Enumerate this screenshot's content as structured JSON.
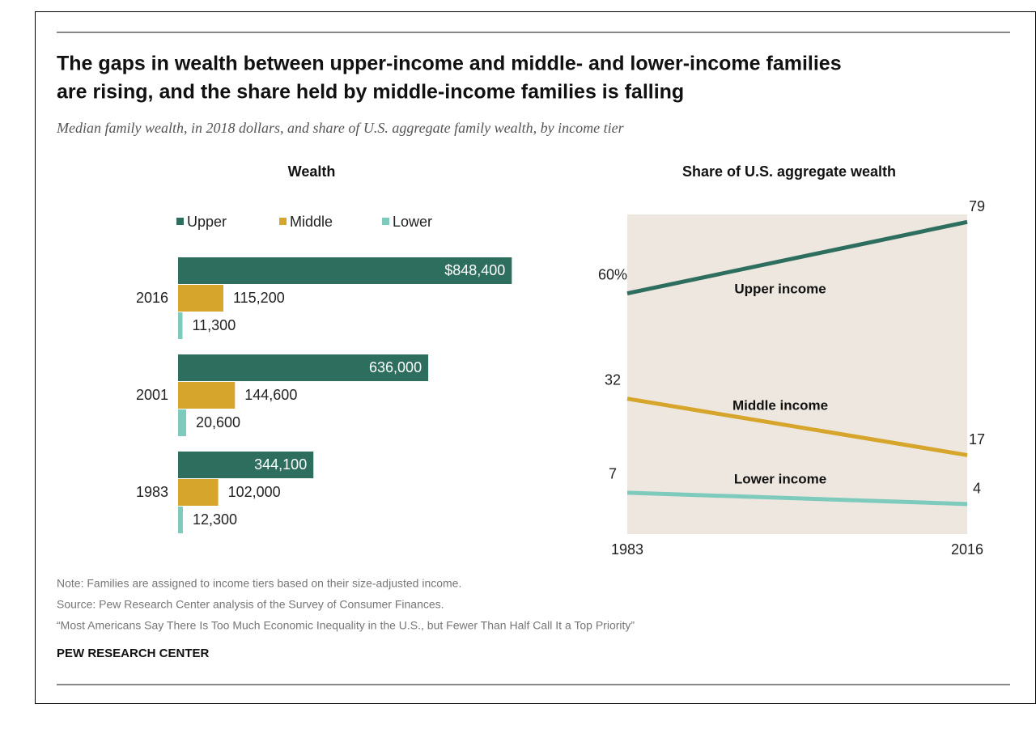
{
  "title": [
    "The gaps in wealth between upper-income and middle- and lower-income families",
    "are rising, and the share held by middle-income families is falling"
  ],
  "subtitle": "Median family wealth, in 2018 dollars, and share of U.S. aggregate family wealth, by income tier",
  "chart_data": [
    {
      "type": "bar",
      "title": "Wealth",
      "orientation": "horizontal",
      "categories": [
        "2016",
        "2001",
        "1983"
      ],
      "xlim": [
        0,
        1000000
      ],
      "series": [
        {
          "name": "Upper",
          "color": "#2e6e5e",
          "values": [
            848400,
            636000,
            344100
          ],
          "value_labels": [
            "$848,400",
            "636,000",
            "344,100"
          ]
        },
        {
          "name": "Middle",
          "color": "#d6a62c",
          "values": [
            115200,
            144600,
            102000
          ],
          "value_labels": [
            "115,200",
            "144,600",
            "102,000"
          ]
        },
        {
          "name": "Lower",
          "color": "#7ecbbd",
          "values": [
            11300,
            20600,
            12300
          ],
          "value_labels": [
            "11,300",
            "20,600",
            "12,300"
          ]
        }
      ]
    },
    {
      "type": "line",
      "title": "Share of U.S. aggregate wealth",
      "x": [
        1983,
        2016
      ],
      "xlim": [
        1983,
        2016
      ],
      "xticks": [
        1983,
        2016
      ],
      "ylim": [
        -4,
        81
      ],
      "background": "#ede7df",
      "series": [
        {
          "name": "Upper income",
          "color": "#2e6e5e",
          "values": [
            60,
            79
          ],
          "value_labels": [
            "60%",
            "79"
          ]
        },
        {
          "name": "Middle income",
          "color": "#d6a62c",
          "values": [
            32,
            17
          ]
        },
        {
          "name": "Lower income",
          "color": "#7ecbbd",
          "values": [
            7,
            4
          ]
        }
      ]
    }
  ],
  "notes": [
    "Note: Families are assigned to income tiers based on their size-adjusted income.",
    "Source: Pew Research Center analysis of the Survey of Consumer Finances.",
    "“Most Americans Say There Is Too Much Economic Inequality in the U.S., but Fewer Than Half Call It a Top Priority”"
  ],
  "footer": "PEW RESEARCH CENTER"
}
